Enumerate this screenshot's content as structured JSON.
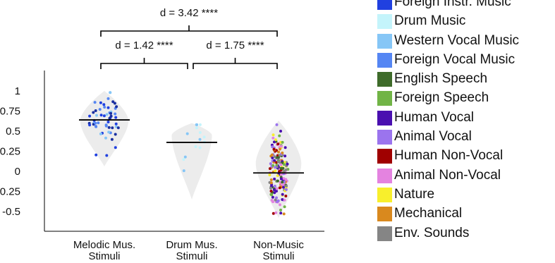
{
  "chart_data": {
    "type": "violin",
    "categories": [
      "Melodic Mus.\nStimuli",
      "Drum Mus.\nStimuli",
      "Non-Music\nStimuli"
    ],
    "yticks": [
      "1",
      "0.75",
      "0.5",
      "0.25",
      "0",
      "-0.25",
      "-0.5"
    ],
    "ylim": [
      -0.75,
      1.15
    ],
    "medians": [
      0.64,
      0.36,
      -0.02
    ],
    "violins": [
      {
        "center": 0.63,
        "min": 0.06,
        "max": 1.0,
        "width": 0.9
      },
      {
        "center": 0.45,
        "min": -0.35,
        "max": 0.6,
        "width": 0.75
      },
      {
        "center": 0.1,
        "min": -0.58,
        "max": 0.63,
        "width": 0.85
      }
    ],
    "comparisons": [
      {
        "label": "d = 3.42 ****",
        "from": 0,
        "to": 2,
        "level": 2
      },
      {
        "label": "d = 1.42 ****",
        "from": 0,
        "to": 1,
        "level": 1
      },
      {
        "label": "d = 1.75 ****",
        "from": 1,
        "to": 2,
        "level": 1
      }
    ]
  },
  "legend": [
    {
      "label": "Foreign Instr. Music",
      "color": "#2040e0"
    },
    {
      "label": "Drum Music",
      "color": "#c4f4fb"
    },
    {
      "label": "Western Vocal Music",
      "color": "#86c6f6"
    },
    {
      "label": "Foreign Vocal Music",
      "color": "#5586f3"
    },
    {
      "label": "English Speech",
      "color": "#3e6b2a"
    },
    {
      "label": "Foreign Speech",
      "color": "#71b446"
    },
    {
      "label": "Human Vocal",
      "color": "#4a0fb0"
    },
    {
      "label": "Animal Vocal",
      "color": "#9b74ee"
    },
    {
      "label": "Human Non-Vocal",
      "color": "#a00000"
    },
    {
      "label": "Animal Non-Vocal",
      "color": "#e483e0"
    },
    {
      "label": "Nature",
      "color": "#f8ef2c"
    },
    {
      "label": "Mechanical",
      "color": "#d9891e"
    },
    {
      "label": "Env. Sounds",
      "color": "#858585"
    }
  ]
}
